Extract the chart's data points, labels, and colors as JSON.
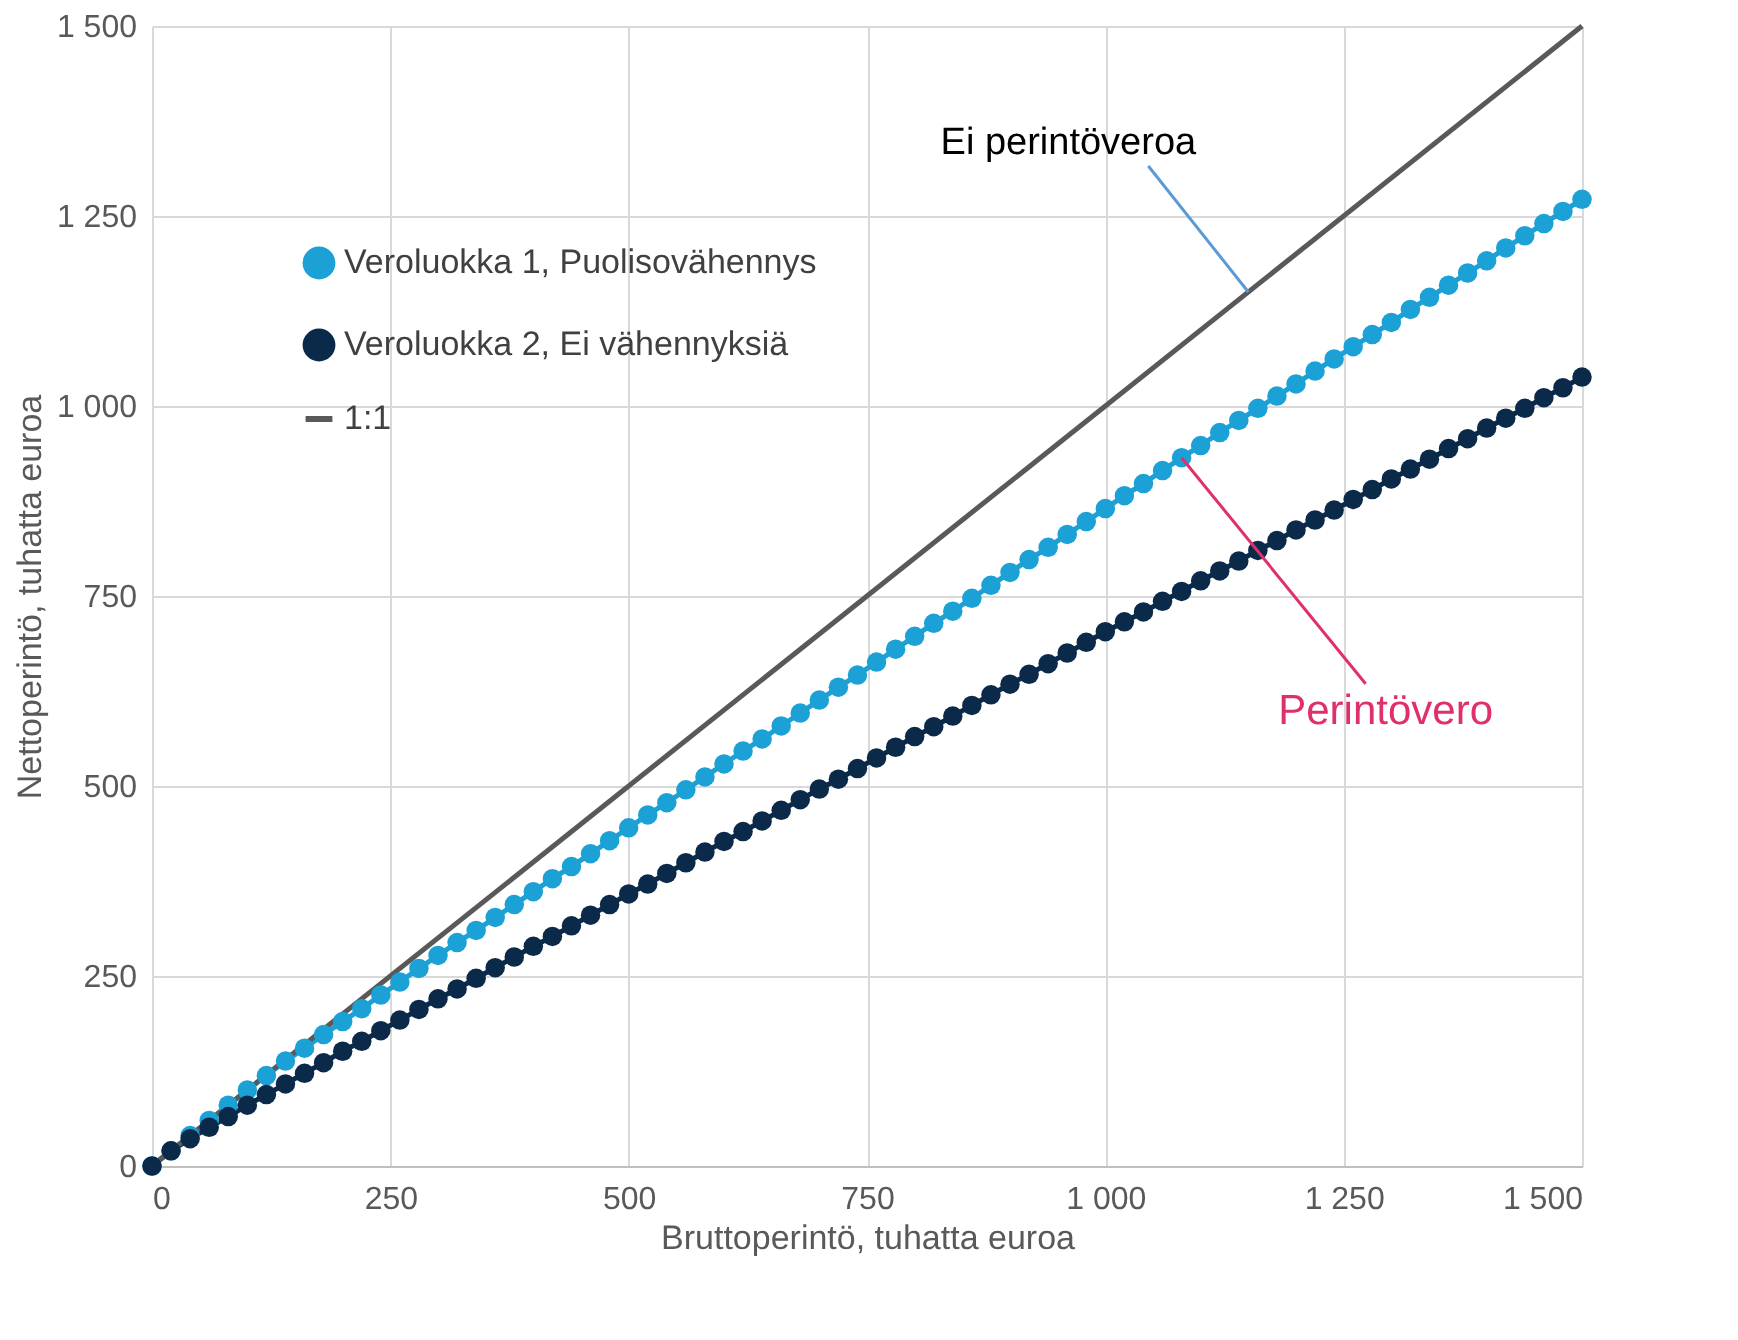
{
  "chart_data": {
    "type": "line",
    "xlabel": "Bruttoperintö, tuhatta euroa",
    "ylabel": "Nettoperintö, tuhatta euroa",
    "x": [
      0,
      20,
      40,
      60,
      80,
      100,
      120,
      140,
      160,
      180,
      200,
      220,
      240,
      260,
      280,
      300,
      320,
      340,
      360,
      380,
      400,
      420,
      440,
      460,
      480,
      500,
      520,
      540,
      560,
      580,
      600,
      620,
      640,
      660,
      680,
      700,
      720,
      740,
      760,
      780,
      800,
      820,
      840,
      860,
      880,
      900,
      920,
      940,
      960,
      980,
      1000,
      1020,
      1040,
      1060,
      1080,
      1100,
      1120,
      1140,
      1160,
      1180,
      1200,
      1220,
      1240,
      1260,
      1280,
      1300,
      1320,
      1340,
      1360,
      1380,
      1400,
      1420,
      1440,
      1460,
      1480,
      1500
    ],
    "series": [
      {
        "name": "Veroluokka 1, Puolisovähennys",
        "color": "#1ba1d5",
        "marker": "circle",
        "values": [
          0,
          20,
          40,
          60,
          80,
          100,
          119,
          138,
          155,
          173,
          190,
          207,
          225,
          242,
          260,
          277,
          294,
          310,
          327,
          344,
          361,
          378,
          394,
          411,
          428,
          445,
          462,
          478,
          495,
          512,
          529,
          546,
          562,
          579,
          596,
          613,
          630,
          646,
          663,
          680,
          697,
          714,
          730,
          747,
          764,
          781,
          798,
          814,
          831,
          848,
          865,
          882,
          898,
          915,
          932,
          948,
          965,
          981,
          997,
          1013,
          1029,
          1046,
          1062,
          1078,
          1094,
          1110,
          1127,
          1143,
          1159,
          1175,
          1191,
          1208,
          1224,
          1240,
          1256,
          1272
        ]
      },
      {
        "name": "Veroluokka 2, Ei vähennyksiä",
        "color": "#0b2a4a",
        "marker": "circle",
        "values": [
          0,
          20,
          36,
          51,
          65,
          80,
          94,
          108,
          122,
          136,
          151,
          164,
          178,
          192,
          206,
          220,
          233,
          247,
          261,
          275,
          289,
          302,
          316,
          330,
          344,
          358,
          371,
          385,
          399,
          413,
          427,
          440,
          454,
          468,
          482,
          496,
          509,
          523,
          537,
          551,
          565,
          578,
          592,
          606,
          620,
          634,
          647,
          661,
          675,
          689,
          703,
          716,
          729,
          743,
          756,
          770,
          783,
          796,
          810,
          823,
          837,
          850,
          863,
          877,
          890,
          904,
          917,
          930,
          944,
          957,
          971,
          984,
          997,
          1011,
          1024,
          1038
        ]
      },
      {
        "name": "1:1",
        "color": "#595959",
        "x": [
          0,
          1500
        ],
        "values": [
          0,
          1500
        ]
      }
    ],
    "xlim": [
      0,
      1500
    ],
    "ylim": [
      0,
      1500
    ],
    "xticks": [
      0,
      250,
      500,
      750,
      {
        "value": 1000,
        "label": "1 000"
      },
      {
        "value": 1250,
        "label": "1 250"
      },
      {
        "value": 1500,
        "label": "1 500"
      }
    ],
    "yticks": [
      0,
      250,
      500,
      750,
      {
        "value": 1000,
        "label": "1 000"
      },
      {
        "value": 1250,
        "label": "1 250"
      },
      {
        "value": 1500,
        "label": "1 500"
      }
    ],
    "grid": true,
    "legend": "top left",
    "annotations": [
      {
        "text": "Ei perintöveroa",
        "x": 1150,
        "y": 1150
      },
      {
        "text": "Perintövero",
        "x": 1080,
        "y": 932
      }
    ]
  }
}
